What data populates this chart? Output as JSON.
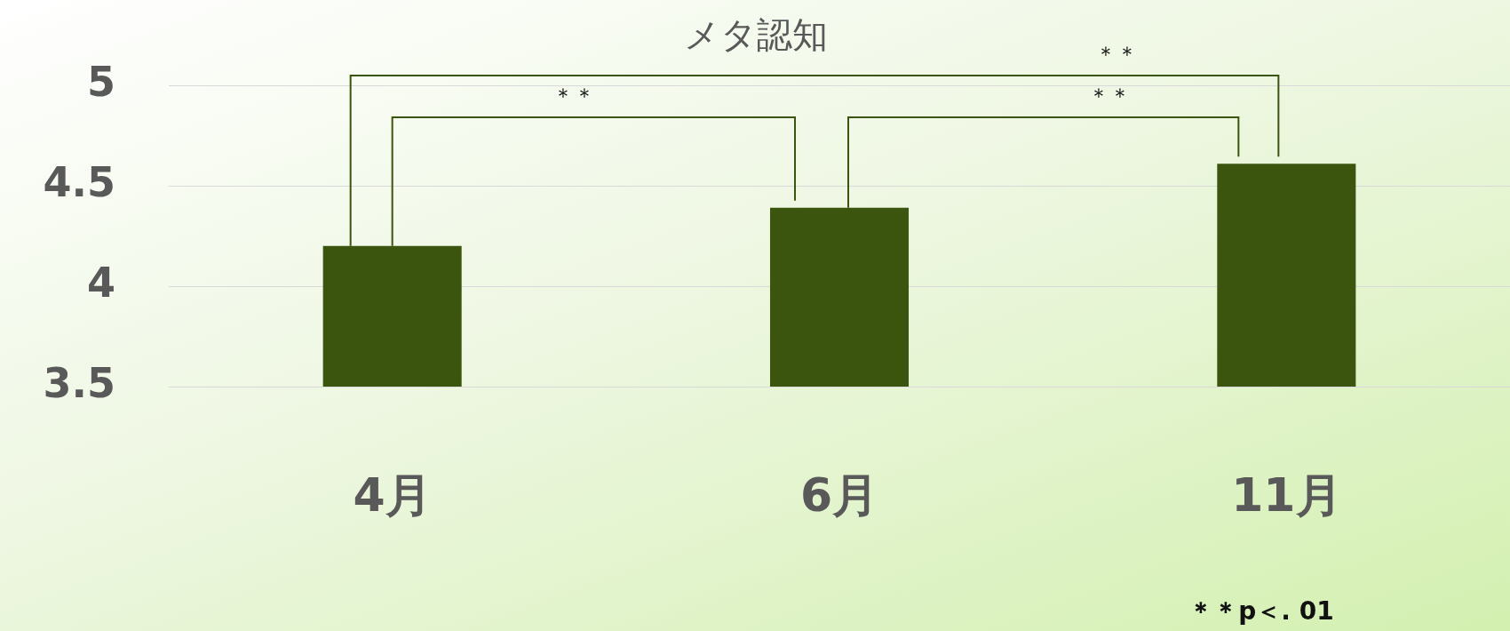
{
  "chart_data": {
    "type": "bar",
    "title": "メタ認知",
    "categories": [
      "4月",
      "6月",
      "11月"
    ],
    "values": [
      4.2,
      4.39,
      4.61
    ],
    "color": "#3b550e",
    "ylim": [
      3.5,
      5
    ],
    "yticks": [
      3.5,
      4,
      4.5,
      5
    ],
    "grid": "y",
    "legend": false,
    "annotations": [
      "＊＊",
      "＊＊",
      "＊＊",
      "＊＊p＜. 01"
    ]
  }
}
